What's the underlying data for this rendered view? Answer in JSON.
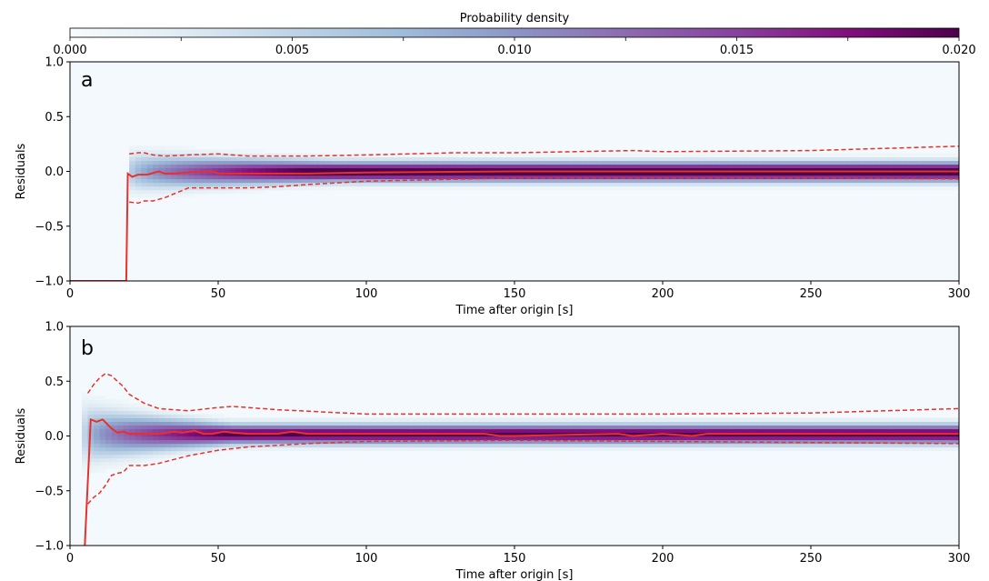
{
  "colorbar": {
    "label": "Probability density",
    "ticks": [
      "0.000",
      "0.005",
      "0.010",
      "0.015",
      "0.020"
    ],
    "range": [
      0,
      0.02
    ],
    "colormap": [
      "#f7fcfd",
      "#e0ecf4",
      "#bfd3e6",
      "#9ebcda",
      "#8c96c6",
      "#8c6bb1",
      "#88419d",
      "#810f7c",
      "#4d004b"
    ]
  },
  "colors": {
    "median": "#e8312a",
    "bounds": "#e8312a"
  },
  "chart_data": [
    {
      "type": "heatmap",
      "panel_label": "a",
      "xlabel": "Time after origin [s]",
      "ylabel": "Residuals",
      "xlim": [
        0,
        300
      ],
      "ylim": [
        -1,
        1
      ],
      "xticks": [
        "0",
        "50",
        "100",
        "150",
        "200",
        "250",
        "300"
      ],
      "yticks": [
        "−1.0",
        "−0.5",
        "0.0",
        "0.5",
        "1.0"
      ],
      "density": {
        "onset": 20,
        "ramp_end": 90,
        "center": 0.0,
        "width_early": 0.13,
        "width_late": 0.06,
        "peak_early": 0.004,
        "peak_late": 0.022
      },
      "median": {
        "x": [
          0,
          19,
          19.5,
          21,
          23,
          26,
          30,
          32,
          35,
          45,
          48,
          50,
          80,
          100,
          150,
          200,
          250,
          300
        ],
        "y": [
          -1,
          -1,
          -0.02,
          -0.05,
          -0.03,
          -0.03,
          0.0,
          -0.02,
          -0.02,
          0.0,
          0.0,
          -0.02,
          -0.02,
          -0.01,
          0.0,
          0.0,
          0.0,
          0.0
        ]
      },
      "upper": {
        "x": [
          20,
          23,
          25,
          28,
          32,
          40,
          50,
          60,
          70,
          80,
          100,
          130,
          150,
          190,
          200,
          250,
          300
        ],
        "y": [
          0.16,
          0.17,
          0.17,
          0.15,
          0.14,
          0.15,
          0.16,
          0.14,
          0.14,
          0.14,
          0.15,
          0.17,
          0.17,
          0.19,
          0.18,
          0.19,
          0.23
        ]
      },
      "lower": {
        "x": [
          20,
          23,
          25,
          28,
          32,
          40,
          50,
          60,
          70,
          80,
          100,
          150,
          200,
          250,
          300
        ],
        "y": [
          -0.28,
          -0.29,
          -0.27,
          -0.27,
          -0.24,
          -0.15,
          -0.15,
          -0.15,
          -0.14,
          -0.12,
          -0.09,
          -0.06,
          -0.06,
          -0.06,
          -0.07
        ]
      }
    },
    {
      "type": "heatmap",
      "panel_label": "b",
      "xlabel": "Time after origin [s]",
      "ylabel": "Residuals",
      "xlim": [
        0,
        300
      ],
      "ylim": [
        -1,
        1
      ],
      "xticks": [
        "0",
        "50",
        "100",
        "150",
        "200",
        "250",
        "300"
      ],
      "yticks": [
        "−1.0",
        "−0.5",
        "0.0",
        "0.5",
        "1.0"
      ],
      "density": {
        "onset": 5,
        "ramp_end": 55,
        "center": 0.02,
        "width_early": 0.2,
        "width_late": 0.06,
        "peak_early": 0.005,
        "peak_late": 0.02
      },
      "median": {
        "x": [
          5,
          7,
          9,
          11,
          14,
          16,
          18,
          20,
          30,
          35,
          38,
          42,
          45,
          48,
          52,
          55,
          60,
          70,
          75,
          80,
          100,
          140,
          145,
          150,
          185,
          190,
          200,
          210,
          215,
          250,
          300
        ],
        "y": [
          -1,
          0.15,
          0.13,
          0.15,
          0.07,
          0.03,
          0.04,
          0.02,
          0.02,
          0.04,
          0.03,
          0.05,
          0.02,
          0.02,
          0.04,
          0.03,
          0.02,
          0.02,
          0.04,
          0.02,
          0.02,
          0.02,
          0.0,
          0.0,
          0.02,
          0.0,
          0.02,
          0.0,
          0.02,
          0.02,
          0.02
        ]
      },
      "upper": {
        "x": [
          6,
          8,
          10,
          12,
          14,
          16,
          18,
          20,
          25,
          30,
          40,
          50,
          55,
          70,
          100,
          150,
          200,
          250,
          300
        ],
        "y": [
          0.39,
          0.47,
          0.53,
          0.57,
          0.55,
          0.5,
          0.45,
          0.38,
          0.3,
          0.25,
          0.23,
          0.26,
          0.27,
          0.24,
          0.2,
          0.2,
          0.2,
          0.21,
          0.25
        ]
      },
      "lower": {
        "x": [
          6,
          8,
          10,
          12,
          14,
          16,
          18,
          20,
          25,
          30,
          40,
          50,
          60,
          80,
          100,
          150,
          200,
          250,
          300
        ],
        "y": [
          -0.62,
          -0.56,
          -0.52,
          -0.45,
          -0.36,
          -0.34,
          -0.33,
          -0.27,
          -0.27,
          -0.25,
          -0.18,
          -0.13,
          -0.1,
          -0.07,
          -0.05,
          -0.04,
          -0.05,
          -0.06,
          -0.07
        ]
      }
    }
  ]
}
